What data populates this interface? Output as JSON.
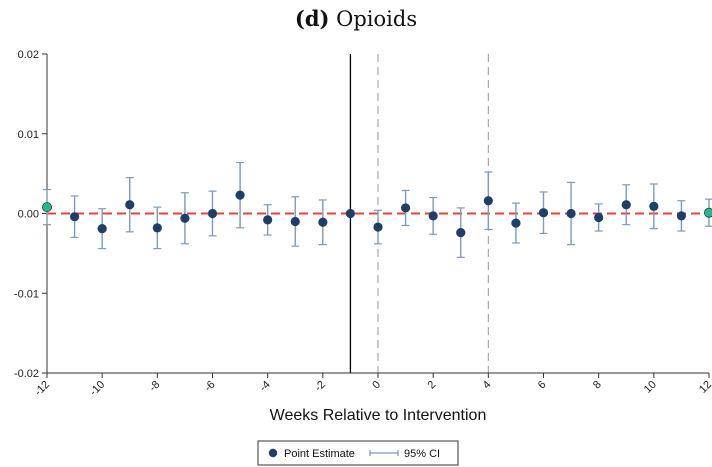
{
  "chart_data": {
    "type": "scatter",
    "title_panel": "(d)",
    "title": "Opioids",
    "xlabel": "Weeks Relative to Intervention",
    "ylabel": "",
    "xlim": [
      -12,
      12
    ],
    "ylim": [
      -0.02,
      0.02
    ],
    "x_ticks": [
      -12,
      -10,
      -8,
      -6,
      -4,
      -2,
      0,
      2,
      4,
      6,
      8,
      10,
      12
    ],
    "x_tick_labels": [
      "-12",
      "-10",
      "-8",
      "-6",
      "-4",
      "-2",
      "0",
      "2",
      "4",
      "6",
      "8",
      "10",
      "12"
    ],
    "y_ticks": [
      -0.02,
      -0.01,
      0.0,
      0.01,
      0.02
    ],
    "y_tick_labels": [
      "-0.02",
      "-0.01",
      "0.00",
      "0.01",
      "0.02"
    ],
    "reference_lines": {
      "horizontal_zero": {
        "y": 0,
        "color": "#e8413c",
        "style": "dashed"
      },
      "solid_vertical": {
        "x": -1,
        "color": "#000000"
      },
      "dashed_verticals": [
        {
          "x": 0
        },
        {
          "x": 4
        }
      ]
    },
    "series": [
      {
        "name": "Point Estimate",
        "color": "#1f3f66",
        "highlight_color": "#2bb58a",
        "points": [
          {
            "x": -12,
            "y": 0.0008,
            "lo": -0.0014,
            "hi": 0.003,
            "highlight": true
          },
          {
            "x": -11,
            "y": -0.0004,
            "lo": -0.003,
            "hi": 0.0022
          },
          {
            "x": -10,
            "y": -0.0019,
            "lo": -0.0044,
            "hi": 0.0006
          },
          {
            "x": -9,
            "y": 0.0011,
            "lo": -0.0023,
            "hi": 0.0045
          },
          {
            "x": -8,
            "y": -0.0018,
            "lo": -0.0044,
            "hi": 0.0008
          },
          {
            "x": -7,
            "y": -0.0006,
            "lo": -0.0038,
            "hi": 0.0026
          },
          {
            "x": -6,
            "y": 0.0,
            "lo": -0.0028,
            "hi": 0.0028
          },
          {
            "x": -5,
            "y": 0.0023,
            "lo": -0.0018,
            "hi": 0.0064
          },
          {
            "x": -4,
            "y": -0.0008,
            "lo": -0.0027,
            "hi": 0.0011
          },
          {
            "x": -3,
            "y": -0.001,
            "lo": -0.0041,
            "hi": 0.0021
          },
          {
            "x": -2,
            "y": -0.0011,
            "lo": -0.0039,
            "hi": 0.0017
          },
          {
            "x": -1,
            "y": 0.0,
            "lo": 0.0,
            "hi": 0.0
          },
          {
            "x": 0,
            "y": -0.0017,
            "lo": -0.0038,
            "hi": 0.0004
          },
          {
            "x": 1,
            "y": 0.0007,
            "lo": -0.0015,
            "hi": 0.0029
          },
          {
            "x": 2,
            "y": -0.0003,
            "lo": -0.0026,
            "hi": 0.002
          },
          {
            "x": 3,
            "y": -0.0024,
            "lo": -0.0055,
            "hi": 0.0007
          },
          {
            "x": 4,
            "y": 0.0016,
            "lo": -0.002,
            "hi": 0.0052
          },
          {
            "x": 5,
            "y": -0.0012,
            "lo": -0.0037,
            "hi": 0.0013
          },
          {
            "x": 6,
            "y": 0.0001,
            "lo": -0.0025,
            "hi": 0.0027
          },
          {
            "x": 7,
            "y": 0.0,
            "lo": -0.0039,
            "hi": 0.0039
          },
          {
            "x": 8,
            "y": -0.0005,
            "lo": -0.0022,
            "hi": 0.0012
          },
          {
            "x": 9,
            "y": 0.0011,
            "lo": -0.0014,
            "hi": 0.0036
          },
          {
            "x": 10,
            "y": 0.0009,
            "lo": -0.0019,
            "hi": 0.0037
          },
          {
            "x": 11,
            "y": -0.0003,
            "lo": -0.0022,
            "hi": 0.0016
          },
          {
            "x": 12,
            "y": 0.0001,
            "lo": -0.0016,
            "hi": 0.0018,
            "highlight": true
          }
        ]
      }
    ],
    "ci_color": "#7f9bb5",
    "legend": {
      "placement": "bottom-center",
      "items": [
        {
          "label": "Point Estimate",
          "kind": "marker"
        },
        {
          "label": "95% CI",
          "kind": "ci"
        }
      ]
    },
    "grid": false
  }
}
